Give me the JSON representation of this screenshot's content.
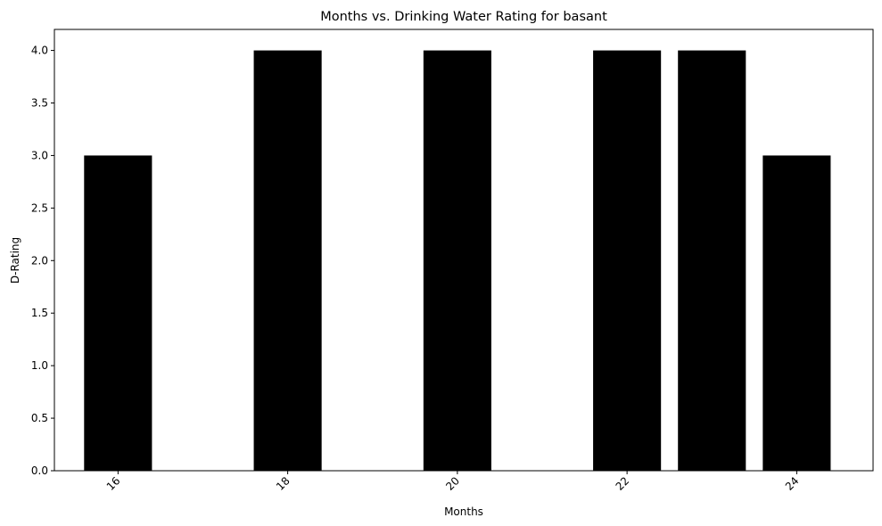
{
  "chart_data": {
    "type": "bar",
    "title": "Months vs. Drinking Water Rating for basant",
    "xlabel": "Months",
    "ylabel": "D-Rating",
    "x": [
      16,
      18,
      20,
      22,
      23,
      24
    ],
    "values": [
      3,
      4,
      4,
      4,
      4,
      3
    ],
    "xlim": [
      15.25,
      24.9
    ],
    "ylim": [
      0,
      4.2
    ],
    "xticks": [
      16,
      18,
      20,
      22,
      24
    ],
    "xtick_labels": [
      "16",
      "18",
      "20",
      "22",
      "24"
    ],
    "yticks": [
      0,
      0.5,
      1,
      1.5,
      2,
      2.5,
      3,
      3.5,
      4
    ],
    "ytick_labels": [
      "0.0",
      "0.5",
      "1.0",
      "1.5",
      "2.0",
      "2.5",
      "3.0",
      "3.5",
      "4.0"
    ],
    "bar_width": 0.8,
    "bar_color": "#000000",
    "grid": false,
    "legend": "none"
  }
}
